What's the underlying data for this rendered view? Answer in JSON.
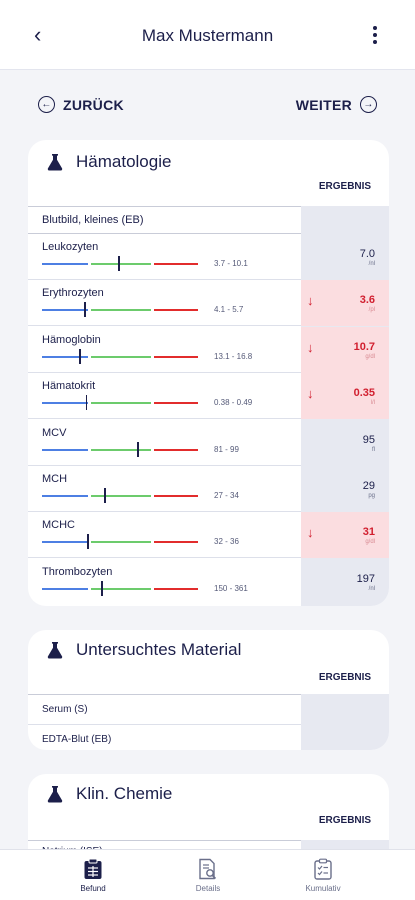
{
  "header": {
    "back_icon": "chevron-left-icon",
    "title": "Max Mustermann",
    "menu_icon": "kebab-menu-icon"
  },
  "navigation": {
    "prev_label": "ZURÜCK",
    "prev_icon": "arrow-left-circle-icon",
    "next_label": "WEITER",
    "next_icon": "arrow-right-circle-icon"
  },
  "hematology": {
    "title": "Hämatologie",
    "icon": "flask-icon",
    "result_header": "ERGEBNIS",
    "section": "Blutbild, kleines (EB)",
    "rows": [
      {
        "name": "Leukozyten",
        "range": "3.7 - 10.1",
        "value": "7.0",
        "unit": "/nl",
        "alert": false,
        "marker": 0.49
      },
      {
        "name": "Erythrozyten",
        "range": "4.1 - 5.7",
        "value": "3.6",
        "unit": "/pl",
        "alert": true,
        "marker": 0.27
      },
      {
        "name": "Hämoglobin",
        "range": "13.1 - 16.8",
        "value": "10.7",
        "unit": "g/dl",
        "alert": true,
        "marker": 0.24
      },
      {
        "name": "Hämatokrit",
        "range": "0.38 - 0.49",
        "value": "0.35",
        "unit": "l/l",
        "alert": true,
        "marker": 0.28
      },
      {
        "name": "MCV",
        "range": "81 - 99",
        "value": "95",
        "unit": "fl",
        "alert": false,
        "marker": 0.61
      },
      {
        "name": "MCH",
        "range": "27 - 34",
        "value": "29",
        "unit": "pg",
        "alert": false,
        "marker": 0.4
      },
      {
        "name": "MCHC",
        "range": "32 - 36",
        "value": "31",
        "unit": "g/dl",
        "alert": true,
        "marker": 0.29
      },
      {
        "name": "Thrombozyten",
        "range": "150 - 361",
        "value": "197",
        "unit": "/nl",
        "alert": false,
        "marker": 0.38
      }
    ]
  },
  "material": {
    "title": "Untersuchtes Material",
    "icon": "flask-icon",
    "result_header": "ERGEBNIS",
    "rows": [
      "Serum (S)",
      "EDTA-Blut (EB)"
    ]
  },
  "chemistry": {
    "title": "Klin. Chemie",
    "icon": "flask-icon",
    "result_header": "ERGEBNIS",
    "first_row": "Natrium (ISE)"
  },
  "alert_icon": "arrow-down-icon",
  "colors": {
    "primary": "#1c1f4a",
    "alert": "#d11f2f",
    "alert_bg": "#fbdde0",
    "range_low": "#4d7fe3",
    "range_normal": "#6ccb6c",
    "range_high": "#e22c2c"
  },
  "tabbar": [
    {
      "label": "Befund",
      "icon": "clipboard-icon",
      "active": true
    },
    {
      "label": "Details",
      "icon": "document-search-icon",
      "active": false
    },
    {
      "label": "Kumulativ",
      "icon": "clipboard-check-icon",
      "active": false
    }
  ]
}
